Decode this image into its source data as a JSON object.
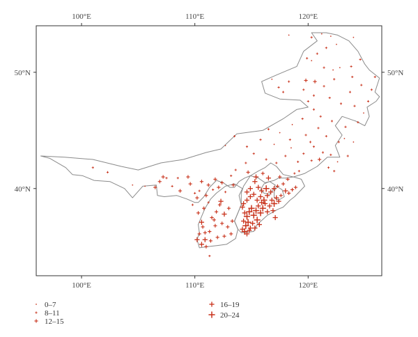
{
  "chart_data": {
    "type": "scatter",
    "title": "",
    "xlabel": "",
    "ylabel": "",
    "xlim": [
      96,
      126.5
    ],
    "ylim": [
      32.5,
      54
    ],
    "x_ticks": [
      {
        "value": 100,
        "label": "100°E"
      },
      {
        "value": 110,
        "label": "110°E"
      },
      {
        "value": 120,
        "label": "120°E"
      }
    ],
    "y_ticks": [
      {
        "value": 40,
        "label": "40°N"
      },
      {
        "value": 50,
        "label": "50°N"
      }
    ],
    "marker_color": "#c8311a",
    "boundary_color": "#8a8a8a",
    "legend": {
      "placement": "bottom",
      "entries": [
        {
          "label": "0–7",
          "size_class": 0
        },
        {
          "label": "8–11",
          "size_class": 1
        },
        {
          "label": "12–15",
          "size_class": 2
        },
        {
          "label": "16–19",
          "size_class": 3
        },
        {
          "label": "20–24",
          "size_class": 4
        }
      ]
    },
    "region_boundary": [
      [
        96.4,
        42.8
      ],
      [
        98.5,
        42.7
      ],
      [
        101,
        42.5
      ],
      [
        103.5,
        41.9
      ],
      [
        105,
        41.6
      ],
      [
        107,
        42.2
      ],
      [
        109,
        42.5
      ],
      [
        111,
        43.1
      ],
      [
        112.3,
        43.4
      ],
      [
        113.7,
        44.7
      ],
      [
        116,
        45.0
      ],
      [
        117.8,
        46.0
      ],
      [
        119,
        46.8
      ],
      [
        120,
        47.0
      ],
      [
        119.3,
        47.6
      ],
      [
        117.5,
        47.7
      ],
      [
        116.2,
        48.2
      ],
      [
        115.9,
        49.2
      ],
      [
        117.3,
        49.8
      ],
      [
        119,
        50.5
      ],
      [
        119.6,
        51.8
      ],
      [
        120.8,
        52.7
      ],
      [
        120.3,
        53.4
      ],
      [
        121.6,
        53.4
      ],
      [
        122.6,
        53.2
      ],
      [
        123.6,
        52.7
      ],
      [
        124.4,
        51.8
      ],
      [
        125,
        50.7
      ],
      [
        125.4,
        50.2
      ],
      [
        126.3,
        49.5
      ],
      [
        125.9,
        48.3
      ],
      [
        126.3,
        47.9
      ],
      [
        126,
        47.5
      ],
      [
        125.2,
        47.0
      ],
      [
        125.4,
        46.2
      ],
      [
        125.0,
        45.4
      ],
      [
        124.2,
        45.8
      ],
      [
        123.0,
        46.2
      ],
      [
        122.4,
        45.4
      ],
      [
        123.0,
        44.6
      ],
      [
        122.4,
        43.7
      ],
      [
        122.8,
        42.7
      ],
      [
        121.7,
        42.7
      ],
      [
        120.8,
        41.9
      ],
      [
        119.7,
        41.3
      ],
      [
        118.7,
        41.0
      ],
      [
        118.0,
        40.9
      ],
      [
        117.4,
        40.9
      ],
      [
        117.0,
        40.7
      ],
      [
        116.2,
        40.5
      ],
      [
        115.6,
        40.9
      ],
      [
        114.9,
        41.1
      ],
      [
        114.4,
        40.9
      ],
      [
        113.9,
        40.6
      ],
      [
        113.5,
        40.1
      ],
      [
        113.1,
        40.1
      ],
      [
        112.5,
        40.5
      ],
      [
        111.9,
        40.7
      ],
      [
        111.3,
        40.1
      ],
      [
        110.8,
        39.3
      ],
      [
        110.3,
        38.8
      ],
      [
        110.0,
        38.8
      ],
      [
        109.3,
        39.1
      ],
      [
        108.4,
        39.4
      ],
      [
        107.3,
        39.3
      ],
      [
        106.7,
        39.4
      ],
      [
        106.6,
        40.3
      ],
      [
        105.4,
        40.2
      ],
      [
        104.5,
        39.2
      ],
      [
        103.8,
        40.0
      ],
      [
        102.5,
        40.6
      ],
      [
        101.1,
        40.7
      ],
      [
        100.1,
        41.1
      ],
      [
        99.2,
        41.2
      ],
      [
        98.6,
        41.8
      ],
      [
        97.2,
        42.6
      ],
      [
        96.4,
        42.8
      ]
    ],
    "inner_boundaries": [
      [
        [
          113.5,
          40.4
        ],
        [
          112.7,
          40.2
        ],
        [
          111.9,
          39.6
        ],
        [
          111.4,
          39.1
        ],
        [
          110.9,
          38.3
        ],
        [
          110.6,
          37.6
        ],
        [
          110.3,
          36.9
        ],
        [
          110.4,
          36.2
        ],
        [
          110.2,
          35.6
        ],
        [
          110.4,
          34.9
        ],
        [
          111.1,
          35.0
        ],
        [
          112.0,
          35.1
        ],
        [
          112.8,
          35.2
        ],
        [
          113.6,
          35.7
        ],
        [
          113.8,
          36.5
        ],
        [
          113.5,
          37.2
        ],
        [
          113.8,
          37.9
        ],
        [
          114.1,
          38.6
        ],
        [
          113.9,
          39.4
        ],
        [
          114.2,
          40.0
        ],
        [
          113.5,
          40.4
        ]
      ],
      [
        [
          114.3,
          40.2
        ],
        [
          114.1,
          39.6
        ],
        [
          114.1,
          38.6
        ],
        [
          113.8,
          37.9
        ],
        [
          113.5,
          37.2
        ],
        [
          113.8,
          36.5
        ],
        [
          114.1,
          36.2
        ],
        [
          115.2,
          36.3
        ],
        [
          115.5,
          36.9
        ],
        [
          116.4,
          37.7
        ],
        [
          117.3,
          38.2
        ],
        [
          117.8,
          38.4
        ],
        [
          118.4,
          39.0
        ],
        [
          118.8,
          39.3
        ],
        [
          119.3,
          39.8
        ],
        [
          119.7,
          40.2
        ],
        [
          119.4,
          40.8
        ],
        [
          118.7,
          41.0
        ],
        [
          117.8,
          41.2
        ],
        [
          117.2,
          41.9
        ],
        [
          116.7,
          42.2
        ],
        [
          116.2,
          41.8
        ],
        [
          115.6,
          41.5
        ],
        [
          114.9,
          41.1
        ],
        [
          114.3,
          40.2
        ]
      ],
      [
        [
          116.1,
          40.4
        ],
        [
          116.6,
          40.6
        ],
        [
          117.1,
          40.3
        ],
        [
          116.9,
          39.9
        ],
        [
          116.6,
          39.5
        ],
        [
          116.1,
          39.6
        ],
        [
          115.8,
          39.9
        ],
        [
          116.1,
          40.4
        ]
      ],
      [
        [
          117.2,
          40.2
        ],
        [
          117.7,
          39.9
        ],
        [
          117.9,
          39.3
        ],
        [
          117.4,
          39.0
        ],
        [
          117.0,
          39.2
        ],
        [
          117.0,
          39.7
        ],
        [
          117.2,
          40.2
        ]
      ]
    ],
    "points": [
      [
        101,
        41.8,
        1
      ],
      [
        102.3,
        41.4,
        1
      ],
      [
        104.5,
        40.3,
        0
      ],
      [
        105.6,
        40.2,
        0
      ],
      [
        106.5,
        40.1,
        2
      ],
      [
        106.9,
        40.6,
        2
      ],
      [
        107.5,
        40.9,
        1
      ],
      [
        107.2,
        41.0,
        2
      ],
      [
        108.0,
        40.2,
        1
      ],
      [
        108.5,
        40.9,
        1
      ],
      [
        108.7,
        39.8,
        2
      ],
      [
        109.4,
        41.0,
        2
      ],
      [
        109.6,
        40.4,
        2
      ],
      [
        110.0,
        39.6,
        1
      ],
      [
        110.4,
        39.8,
        1
      ],
      [
        110.6,
        40.6,
        2
      ],
      [
        111.0,
        39.4,
        2
      ],
      [
        111.2,
        40.3,
        2
      ],
      [
        111.6,
        39.9,
        1
      ],
      [
        111.8,
        40.8,
        2
      ],
      [
        112.1,
        40.1,
        2
      ],
      [
        112.4,
        40.5,
        2
      ],
      [
        112.7,
        39.7,
        1
      ],
      [
        113.2,
        41.1,
        1
      ],
      [
        113.4,
        40.3,
        2
      ],
      [
        113.6,
        41.6,
        1
      ],
      [
        110.2,
        39.2,
        2
      ],
      [
        109.8,
        38.6,
        1
      ],
      [
        110.3,
        37.9,
        2
      ],
      [
        110.8,
        38.3,
        2
      ],
      [
        111.2,
        38.8,
        1
      ],
      [
        111.5,
        37.5,
        2
      ],
      [
        111.9,
        38.0,
        2
      ],
      [
        112.2,
        38.6,
        2
      ],
      [
        112.6,
        37.8,
        3
      ],
      [
        113.0,
        38.3,
        2
      ],
      [
        113.3,
        37.2,
        2
      ],
      [
        112.9,
        36.7,
        2
      ],
      [
        112.4,
        37.0,
        2
      ],
      [
        111.8,
        36.8,
        2
      ],
      [
        111.3,
        36.3,
        2
      ],
      [
        110.7,
        36.7,
        2
      ],
      [
        110.4,
        36.1,
        2
      ],
      [
        110.9,
        35.6,
        3
      ],
      [
        111.4,
        35.5,
        2
      ],
      [
        112.0,
        35.8,
        2
      ],
      [
        112.6,
        35.9,
        2
      ],
      [
        113.2,
        36.1,
        2
      ],
      [
        110.6,
        35.2,
        3
      ],
      [
        111.0,
        35.0,
        2
      ],
      [
        110.2,
        35.6,
        3
      ],
      [
        111.3,
        34.2,
        1
      ],
      [
        110.6,
        37.1,
        3
      ],
      [
        110.9,
        36.2,
        2
      ],
      [
        111.7,
        37.3,
        2
      ],
      [
        112.3,
        38.9,
        3
      ],
      [
        114.2,
        38.4,
        3
      ],
      [
        114.4,
        37.9,
        3
      ],
      [
        114.6,
        37.6,
        4
      ],
      [
        114.8,
        38.0,
        4
      ],
      [
        115.0,
        38.3,
        4
      ],
      [
        115.2,
        37.7,
        4
      ],
      [
        115.4,
        38.1,
        4
      ],
      [
        115.6,
        38.5,
        3
      ],
      [
        115.8,
        37.9,
        4
      ],
      [
        116.0,
        38.3,
        4
      ],
      [
        116.2,
        38.7,
        3
      ],
      [
        116.4,
        38.0,
        3
      ],
      [
        116.6,
        38.5,
        3
      ],
      [
        116.8,
        39.0,
        3
      ],
      [
        117.0,
        38.7,
        4
      ],
      [
        117.2,
        39.2,
        3
      ],
      [
        117.4,
        38.9,
        3
      ],
      [
        117.6,
        39.4,
        2
      ],
      [
        114.3,
        37.2,
        3
      ],
      [
        114.5,
        36.8,
        4
      ],
      [
        114.7,
        37.1,
        4
      ],
      [
        114.9,
        36.6,
        3
      ],
      [
        115.1,
        37.0,
        3
      ],
      [
        115.3,
        36.6,
        3
      ],
      [
        115.5,
        37.3,
        4
      ],
      [
        115.7,
        36.9,
        3
      ],
      [
        114.2,
        36.5,
        3
      ],
      [
        114.4,
        36.3,
        4
      ],
      [
        114.6,
        36.1,
        3
      ],
      [
        114.8,
        36.4,
        3
      ],
      [
        114.3,
        38.7,
        3
      ],
      [
        114.6,
        39.0,
        3
      ],
      [
        114.9,
        39.3,
        3
      ],
      [
        115.2,
        39.5,
        3
      ],
      [
        115.5,
        39.0,
        3
      ],
      [
        115.8,
        39.3,
        3
      ],
      [
        116.1,
        39.0,
        4
      ],
      [
        116.4,
        39.4,
        3
      ],
      [
        116.7,
        39.7,
        3
      ],
      [
        117.0,
        40.0,
        3
      ],
      [
        117.3,
        40.2,
        2
      ],
      [
        116.3,
        40.0,
        4
      ],
      [
        115.9,
        39.8,
        3
      ],
      [
        115.6,
        40.1,
        3
      ],
      [
        114.9,
        40.0,
        3
      ],
      [
        114.6,
        39.7,
        3
      ],
      [
        118.0,
        39.8,
        3
      ],
      [
        118.3,
        39.6,
        2
      ],
      [
        118.6,
        39.9,
        2
      ],
      [
        118.9,
        40.1,
        2
      ],
      [
        117.8,
        40.4,
        2
      ],
      [
        118.2,
        40.8,
        2
      ],
      [
        117.5,
        41.0,
        2
      ],
      [
        118.8,
        41.3,
        1
      ],
      [
        119.2,
        41.5,
        1
      ],
      [
        116.5,
        40.9,
        3
      ],
      [
        116.0,
        41.3,
        2
      ],
      [
        115.4,
        41.0,
        3
      ],
      [
        114.7,
        41.4,
        2
      ],
      [
        115.3,
        40.6,
        3
      ],
      [
        117.1,
        37.5,
        3
      ],
      [
        116.9,
        38.1,
        3
      ],
      [
        115.9,
        38.8,
        3
      ],
      [
        114.5,
        42.2,
        1
      ],
      [
        115.2,
        43.0,
        1
      ],
      [
        116.3,
        42.5,
        1
      ],
      [
        117.2,
        42.2,
        1
      ],
      [
        118.0,
        42.8,
        1
      ],
      [
        119.1,
        42.3,
        1
      ],
      [
        118.5,
        43.5,
        0
      ],
      [
        119.6,
        43.0,
        1
      ],
      [
        120.3,
        42.4,
        1
      ],
      [
        121.0,
        42.5,
        2
      ],
      [
        120.5,
        43.6,
        1
      ],
      [
        121.3,
        43.1,
        1
      ],
      [
        122.0,
        42.9,
        1
      ],
      [
        122.6,
        42.3,
        0
      ],
      [
        121.8,
        41.8,
        1
      ],
      [
        122.3,
        41.5,
        1
      ],
      [
        117.0,
        43.8,
        0
      ],
      [
        114.6,
        43.6,
        1
      ],
      [
        113.5,
        44.5,
        1
      ],
      [
        112.7,
        43.7,
        0
      ],
      [
        115.8,
        44.2,
        1
      ],
      [
        117.5,
        44.8,
        0
      ],
      [
        116.5,
        45.1,
        1
      ],
      [
        118.4,
        44.2,
        1
      ],
      [
        119.8,
        44.6,
        1
      ],
      [
        120.2,
        44.0,
        1
      ],
      [
        120.9,
        45.2,
        1
      ],
      [
        121.6,
        44.5,
        1
      ],
      [
        122.1,
        45.8,
        1
      ],
      [
        121.1,
        46.2,
        1
      ],
      [
        120.5,
        46.8,
        1
      ],
      [
        119.5,
        46.0,
        1
      ],
      [
        118.6,
        45.5,
        0
      ],
      [
        123.2,
        44.3,
        0
      ],
      [
        124.0,
        44.0,
        0
      ],
      [
        123.5,
        42.8,
        1
      ],
      [
        122.7,
        44.0,
        1
      ],
      [
        123.3,
        45.3,
        1
      ],
      [
        124.4,
        45.7,
        1
      ],
      [
        124.9,
        46.5,
        0
      ],
      [
        125.3,
        47.5,
        1
      ],
      [
        125.6,
        48.5,
        1
      ],
      [
        124.7,
        48.9,
        1
      ],
      [
        123.9,
        49.6,
        1
      ],
      [
        122.3,
        49.4,
        1
      ],
      [
        121.4,
        48.8,
        1
      ],
      [
        120.6,
        49.2,
        2
      ],
      [
        119.8,
        49.3,
        2
      ],
      [
        119.6,
        48.5,
        1
      ],
      [
        120.5,
        48.0,
        1
      ],
      [
        118.3,
        49.2,
        1
      ],
      [
        117.8,
        48.3,
        1
      ],
      [
        117.4,
        48.7,
        1
      ],
      [
        116.8,
        49.4,
        0
      ],
      [
        121.4,
        50.4,
        1
      ],
      [
        122.2,
        50.2,
        0
      ],
      [
        122.8,
        50.4,
        0
      ],
      [
        123.8,
        50.5,
        1
      ],
      [
        124.6,
        51.1,
        1
      ],
      [
        120.8,
        51.6,
        1
      ],
      [
        121.6,
        52.1,
        1
      ],
      [
        122.5,
        52.4,
        0
      ],
      [
        120.3,
        53.0,
        1
      ],
      [
        121.2,
        53.3,
        0
      ],
      [
        122.0,
        53.1,
        0
      ],
      [
        124.0,
        53.0,
        0
      ],
      [
        118.3,
        53.2,
        0
      ],
      [
        119.9,
        51.2,
        1
      ],
      [
        120.3,
        51.0,
        0
      ],
      [
        120.0,
        47.5,
        1
      ],
      [
        122.9,
        47.3,
        1
      ],
      [
        121.9,
        47.8,
        1
      ],
      [
        124.1,
        47.1,
        1
      ],
      [
        123.7,
        48.3,
        1
      ],
      [
        125.9,
        49.6,
        1
      ]
    ]
  }
}
